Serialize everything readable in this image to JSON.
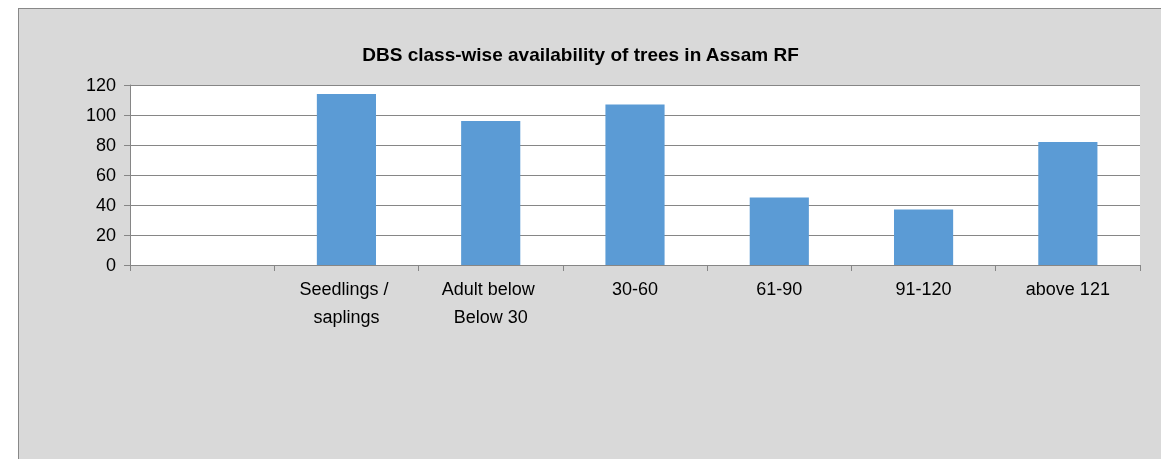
{
  "chart_data": {
    "type": "bar",
    "title": "DBS class-wise availability of trees in Assam RF",
    "categories": [
      null,
      "Seedlings / saplings",
      "Adult below Below 30",
      "30-60",
      "61-90",
      "91-120",
      "above 121"
    ],
    "values": [
      null,
      114,
      96,
      107,
      45,
      37,
      82
    ],
    "color": "#5b9bd5",
    "ylim": [
      0,
      120
    ],
    "yticks": [
      0,
      20,
      40,
      60,
      80,
      100,
      120
    ],
    "grid": "y"
  }
}
